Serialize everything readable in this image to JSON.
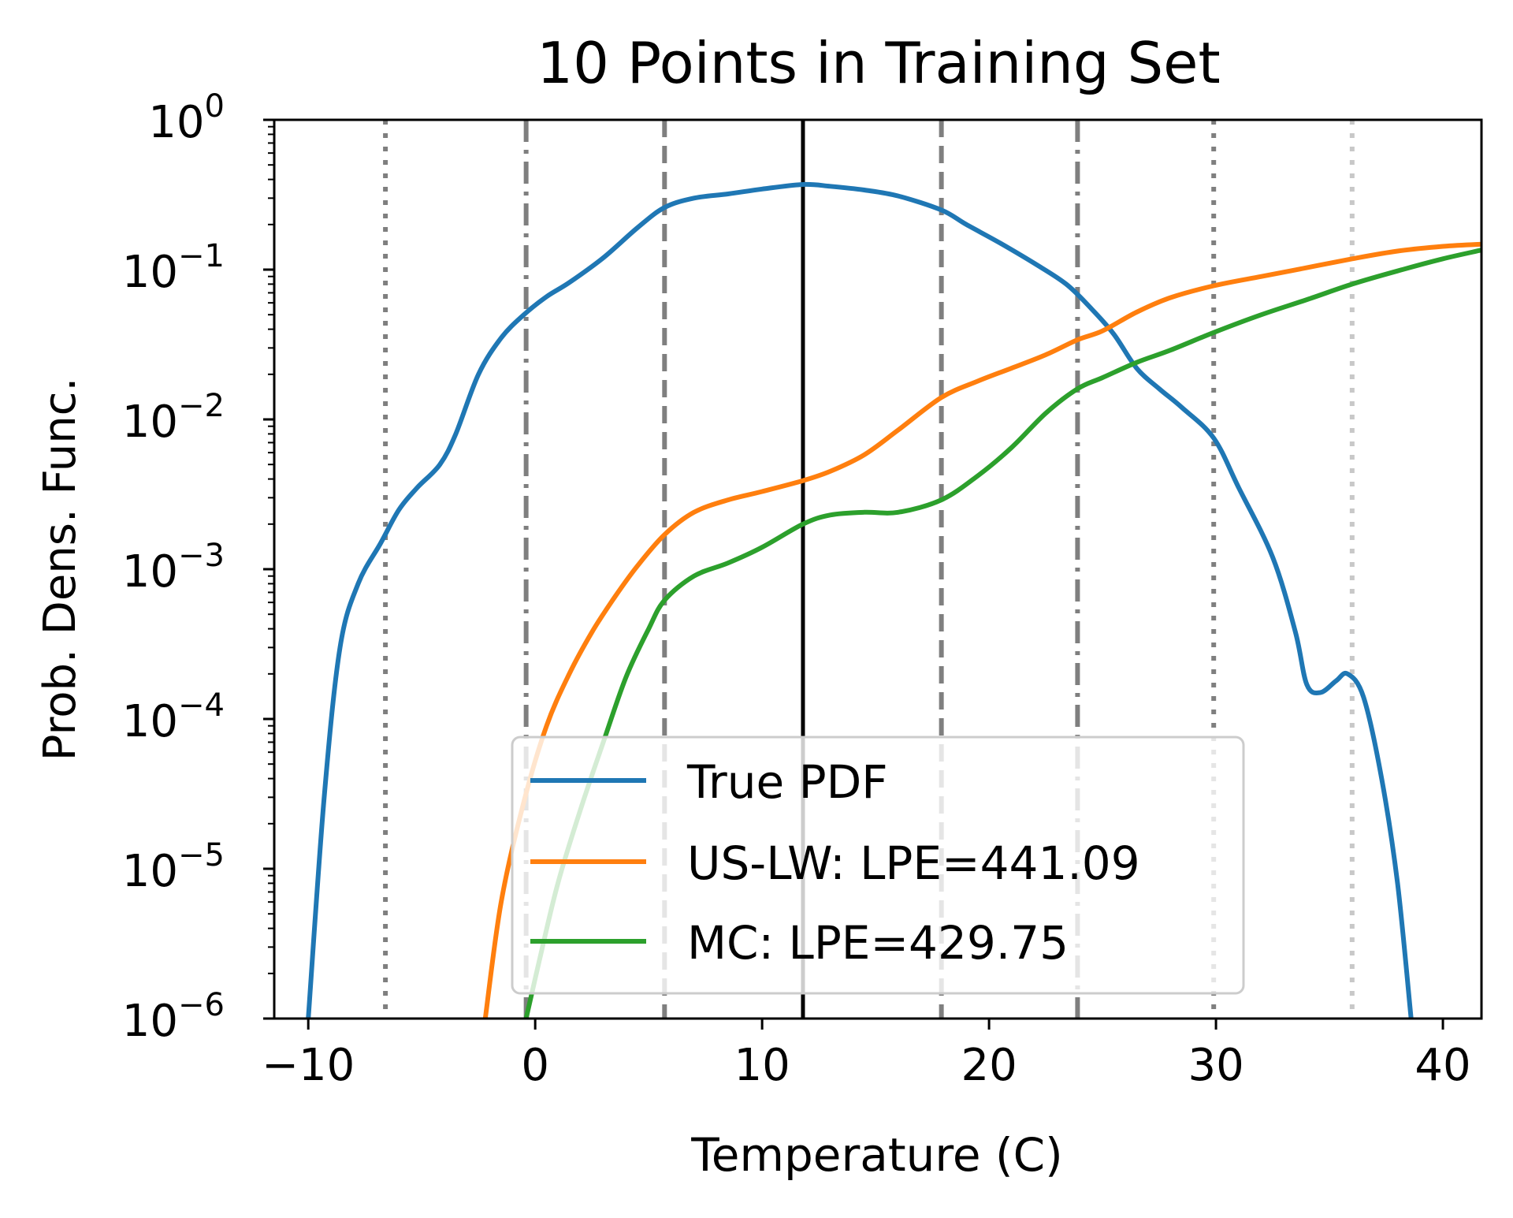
{
  "chart_data": {
    "type": "line",
    "title": "10 Points in Training Set",
    "xlabel": "Temperature (C)",
    "ylabel": "Prob. Dens. Func.",
    "xlim": [
      -11.5,
      41.7
    ],
    "ylim": [
      1e-06,
      1
    ],
    "yscale": "log",
    "xticks": [
      -10,
      0,
      10,
      20,
      30,
      40
    ],
    "xtick_labels": [
      "−10",
      "0",
      "10",
      "20",
      "30",
      "40"
    ],
    "yticks": [
      {
        "base": "10",
        "exp": "−6",
        "value": 1e-06
      },
      {
        "base": "10",
        "exp": "−5",
        "value": 1e-05
      },
      {
        "base": "10",
        "exp": "−4",
        "value": 0.0001
      },
      {
        "base": "10",
        "exp": "−3",
        "value": 0.001
      },
      {
        "base": "10",
        "exp": "−2",
        "value": 0.01
      },
      {
        "base": "10",
        "exp": "−1",
        "value": 0.1
      },
      {
        "base": "10",
        "exp": "0",
        "value": 1
      }
    ],
    "grid": false,
    "legend_position": "lower-center",
    "vlines": [
      {
        "x": -6.6,
        "style": "dotted",
        "color": "#7f7f7f"
      },
      {
        "x": -0.4,
        "style": "dashdot",
        "color": "#7f7f7f"
      },
      {
        "x": 5.7,
        "style": "dashed",
        "color": "#7f7f7f"
      },
      {
        "x": 11.8,
        "style": "solid",
        "color": "#000000"
      },
      {
        "x": 17.9,
        "style": "dashed",
        "color": "#7f7f7f"
      },
      {
        "x": 23.9,
        "style": "dashdot",
        "color": "#7f7f7f"
      },
      {
        "x": 29.9,
        "style": "dotted",
        "color": "#7f7f7f"
      },
      {
        "x": 36.0,
        "style": "dotted",
        "color": "#c8c8c8"
      }
    ],
    "series": [
      {
        "name": "True PDF",
        "color": "#1f77b4",
        "points": [
          [
            -10,
            1e-06
          ],
          [
            -9.3,
            3e-05
          ],
          [
            -8.6,
            0.0003
          ],
          [
            -7.8,
            0.0008
          ],
          [
            -6.8,
            0.0015
          ],
          [
            -6.0,
            0.0025
          ],
          [
            -5.2,
            0.0035
          ],
          [
            -4.2,
            0.005
          ],
          [
            -3.5,
            0.008
          ],
          [
            -2.5,
            0.02
          ],
          [
            -1.5,
            0.035
          ],
          [
            -0.5,
            0.05
          ],
          [
            0.5,
            0.066
          ],
          [
            1.5,
            0.082
          ],
          [
            3,
            0.12
          ],
          [
            4.5,
            0.19
          ],
          [
            5.7,
            0.26
          ],
          [
            7,
            0.3
          ],
          [
            8.5,
            0.32
          ],
          [
            10,
            0.345
          ],
          [
            11.8,
            0.37
          ],
          [
            13,
            0.36
          ],
          [
            14.5,
            0.34
          ],
          [
            16,
            0.31
          ],
          [
            17.9,
            0.25
          ],
          [
            19,
            0.2
          ],
          [
            20.5,
            0.15
          ],
          [
            22,
            0.11
          ],
          [
            23.4,
            0.08
          ],
          [
            24.5,
            0.055
          ],
          [
            25.5,
            0.037
          ],
          [
            26.5,
            0.022
          ],
          [
            27.5,
            0.016
          ],
          [
            28.5,
            0.012
          ],
          [
            29.9,
            0.0075
          ],
          [
            31,
            0.0035
          ],
          [
            32.5,
            0.0012
          ],
          [
            33.5,
            0.00038
          ],
          [
            34,
            0.00017
          ],
          [
            34.6,
            0.00015
          ],
          [
            35.3,
            0.00018
          ],
          [
            35.8,
            0.0002
          ],
          [
            36.5,
            0.00014
          ],
          [
            37.3,
            4e-05
          ],
          [
            38,
            8e-06
          ],
          [
            38.6,
            1e-06
          ]
        ]
      },
      {
        "name": "US-LW: LPE=441.09",
        "color": "#ff7f0e",
        "points": [
          [
            -2.2,
            1e-06
          ],
          [
            -1.5,
            6e-06
          ],
          [
            -0.5,
            2.8e-05
          ],
          [
            0.5,
            9e-05
          ],
          [
            1.5,
            0.0002
          ],
          [
            2.5,
            0.00038
          ],
          [
            3.5,
            0.00065
          ],
          [
            4.5,
            0.00105
          ],
          [
            5.7,
            0.0017
          ],
          [
            7,
            0.0024
          ],
          [
            8.5,
            0.0029
          ],
          [
            10,
            0.0033
          ],
          [
            11.8,
            0.0039
          ],
          [
            13,
            0.0045
          ],
          [
            14.5,
            0.0058
          ],
          [
            16,
            0.0085
          ],
          [
            17.9,
            0.014
          ],
          [
            19.5,
            0.018
          ],
          [
            21,
            0.022
          ],
          [
            22.5,
            0.027
          ],
          [
            23.9,
            0.034
          ],
          [
            25,
            0.039
          ],
          [
            26.5,
            0.052
          ],
          [
            28,
            0.065
          ],
          [
            29.9,
            0.078
          ],
          [
            32,
            0.09
          ],
          [
            34,
            0.103
          ],
          [
            36,
            0.118
          ],
          [
            38,
            0.133
          ],
          [
            40,
            0.143
          ],
          [
            41.7,
            0.148
          ]
        ]
      },
      {
        "name": "MC: LPE=429.75",
        "color": "#2ca02c",
        "points": [
          [
            -0.4,
            1e-06
          ],
          [
            0.2,
            2.5e-06
          ],
          [
            1,
            8e-06
          ],
          [
            2,
            2.5e-05
          ],
          [
            3,
            7e-05
          ],
          [
            4,
            0.00019
          ],
          [
            5,
            0.0004
          ],
          [
            5.7,
            0.00062
          ],
          [
            7,
            0.0009
          ],
          [
            8.5,
            0.0011
          ],
          [
            10,
            0.0014
          ],
          [
            11.8,
            0.002
          ],
          [
            13,
            0.0023
          ],
          [
            14.5,
            0.0024
          ],
          [
            16,
            0.0024
          ],
          [
            17.9,
            0.0029
          ],
          [
            19.5,
            0.0042
          ],
          [
            21,
            0.0065
          ],
          [
            22.5,
            0.011
          ],
          [
            23.9,
            0.016
          ],
          [
            25,
            0.019
          ],
          [
            26.5,
            0.024
          ],
          [
            28,
            0.029
          ],
          [
            29.9,
            0.038
          ],
          [
            32,
            0.05
          ],
          [
            34,
            0.063
          ],
          [
            36,
            0.08
          ],
          [
            38,
            0.098
          ],
          [
            40,
            0.118
          ],
          [
            41.7,
            0.135
          ]
        ]
      }
    ]
  }
}
